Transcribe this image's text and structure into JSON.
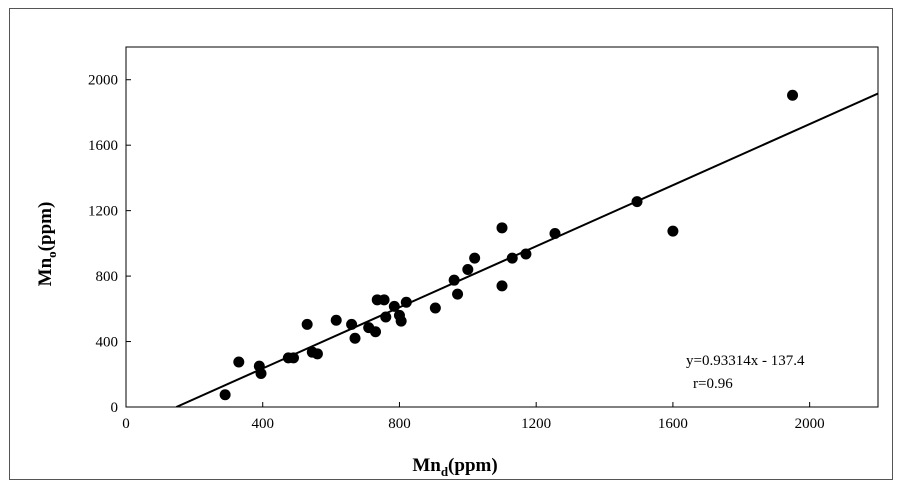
{
  "chart_data": {
    "type": "scatter",
    "xlabel": {
      "main": "Mn",
      "sub": "d",
      "unit": "(ppm)"
    },
    "ylabel": {
      "main": "Mn",
      "sub": "o",
      "unit": "(ppm)"
    },
    "xlim": [
      0,
      2200
    ],
    "ylim": [
      0,
      2200
    ],
    "xticks": [
      0,
      400,
      800,
      1200,
      1600,
      2000
    ],
    "yticks": [
      0,
      400,
      800,
      1200,
      1600,
      2000
    ],
    "grid": false,
    "points": [
      [
        290,
        75
      ],
      [
        330,
        275
      ],
      [
        390,
        250
      ],
      [
        395,
        205
      ],
      [
        475,
        300
      ],
      [
        490,
        300
      ],
      [
        530,
        505
      ],
      [
        545,
        335
      ],
      [
        560,
        325
      ],
      [
        615,
        530
      ],
      [
        660,
        505
      ],
      [
        670,
        420
      ],
      [
        710,
        485
      ],
      [
        730,
        460
      ],
      [
        735,
        655
      ],
      [
        755,
        655
      ],
      [
        760,
        550
      ],
      [
        785,
        615
      ],
      [
        800,
        560
      ],
      [
        805,
        525
      ],
      [
        820,
        640
      ],
      [
        905,
        605
      ],
      [
        960,
        775
      ],
      [
        970,
        690
      ],
      [
        1000,
        840
      ],
      [
        1020,
        910
      ],
      [
        1100,
        1095
      ],
      [
        1100,
        740
      ],
      [
        1130,
        910
      ],
      [
        1170,
        935
      ],
      [
        1255,
        1060
      ],
      [
        1495,
        1255
      ],
      [
        1600,
        1075
      ],
      [
        1950,
        1905
      ]
    ],
    "fit": {
      "slope": 0.93314,
      "intercept": -137.4
    },
    "annotation": {
      "equation": "y=0.93314x - 137.4",
      "r": "r=0.96",
      "position": "bottom-right"
    },
    "marker_color": "#000000"
  }
}
